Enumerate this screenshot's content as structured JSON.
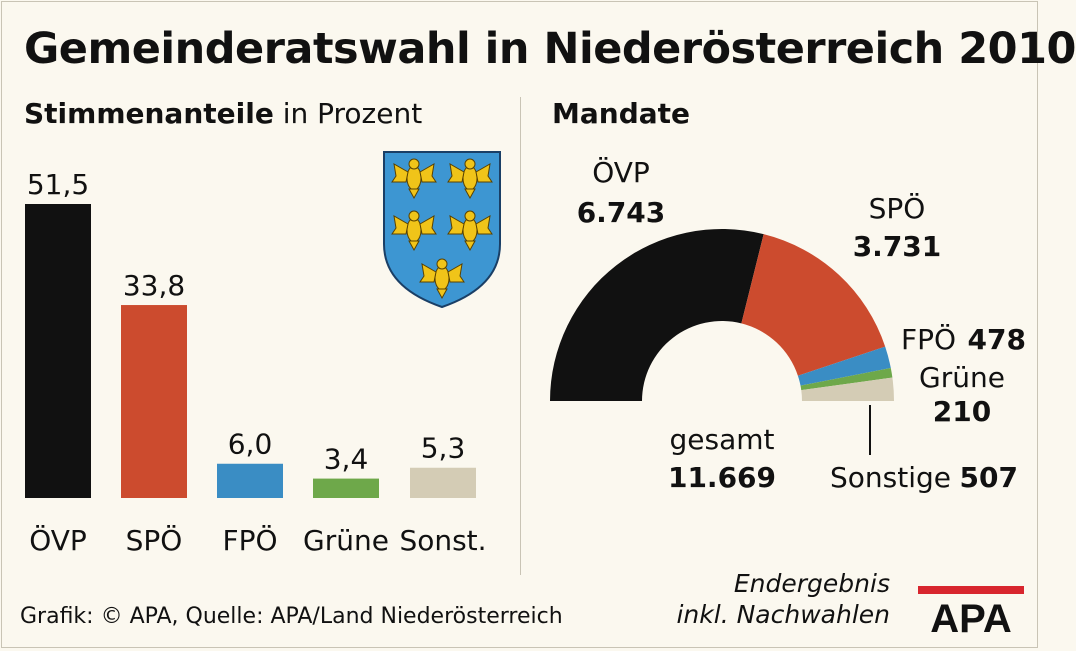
{
  "title": "Gemeinderatswahl in Niederösterreich 2010",
  "left_panel": {
    "subtitle_bold": "Stimmenanteile",
    "subtitle_rest": " in Prozent"
  },
  "right_panel": {
    "subtitle": "Mandate"
  },
  "chart_data": [
    {
      "type": "bar",
      "title": "Stimmenanteile in Prozent",
      "categories": [
        "ÖVP",
        "SPÖ",
        "FPÖ",
        "Grüne",
        "Sonst."
      ],
      "values": [
        51.5,
        33.8,
        6.0,
        3.4,
        5.3
      ],
      "value_labels": [
        "51,5",
        "33,8",
        "6,0",
        "3,4",
        "5,3"
      ],
      "colors": [
        "#111111",
        "#cc4b2e",
        "#3a8dc4",
        "#6ea84a",
        "#d4ccb5"
      ],
      "ylim": [
        0,
        51.5
      ],
      "grid": false
    },
    {
      "type": "pie",
      "subtype": "half-donut",
      "title": "Mandate",
      "labels": [
        "ÖVP",
        "SPÖ",
        "FPÖ",
        "Grüne",
        "Sonstige"
      ],
      "values": [
        6743,
        3731,
        478,
        210,
        507
      ],
      "value_labels": [
        "6.743",
        "3.731",
        "478",
        "210",
        "507"
      ],
      "colors": [
        "#111111",
        "#cc4b2e",
        "#3a8dc4",
        "#6ea84a",
        "#d4ccb5"
      ],
      "total_label": "gesamt",
      "total_value": "11.669"
    }
  ],
  "footer": {
    "source": "Grafik: © APA, Quelle: APA/Land Niederösterreich",
    "note_line1": "Endergebnis",
    "note_line2": "inkl. Nachwahlen",
    "logo_text": "APA"
  }
}
